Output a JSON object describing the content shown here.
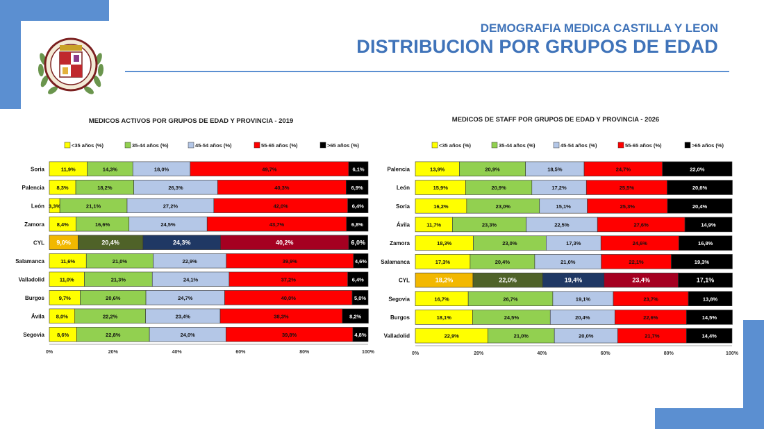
{
  "header": {
    "supertitle": "DEMOGRAFIA MEDICA CASTILLA Y LEON",
    "title": "DISTRIBUCION POR GRUPOS DE EDAD"
  },
  "colors": {
    "accent": "#5b8fd1",
    "header_text": "#3f73b9"
  },
  "logo": {
    "description_icon": "crest-emblem-icon",
    "lettering": "ILUSTRE COLEGIO OFICIAL DE MEDICOS DE CASTILLA Y LEON"
  },
  "chart_data": [
    {
      "type": "bar",
      "orientation": "horizontal",
      "stacked": true,
      "title": "MEDICOS ACTIVOS POR GRUPOS DE EDAD Y PROVINCIA - 2019",
      "categories": [
        "Soria",
        "Palencia",
        "León",
        "Zamora",
        "CYL",
        "Salamanca",
        "Valladolid",
        "Burgos",
        "Ávila",
        "Segovia"
      ],
      "highlight_category": "CYL",
      "series": [
        {
          "name": "<35 años (%)",
          "color": "#ffff00",
          "highlight_color": "#f2b800",
          "values": [
            11.9,
            8.3,
            3.3,
            8.4,
            9.0,
            11.6,
            11.0,
            9.7,
            8.0,
            8.6
          ],
          "labels": [
            "11,9%",
            "8,3%",
            "3,3%",
            "8,4%",
            "9,0%",
            "11,6%",
            "11,0%",
            "9,7%",
            "8,0%",
            "8,6%"
          ]
        },
        {
          "name": "35-44 años (%)",
          "color": "#92d050",
          "highlight_color": "#4f6228",
          "values": [
            14.3,
            18.2,
            21.1,
            16.6,
            20.4,
            21.0,
            21.3,
            20.6,
            22.2,
            22.8
          ],
          "labels": [
            "14,3%",
            "18,2%",
            "21,1%",
            "16,6%",
            "20,4%",
            "21,0%",
            "21,3%",
            "20,6%",
            "22,2%",
            "22,8%"
          ]
        },
        {
          "name": "45-54 años (%)",
          "color": "#b4c7e7",
          "highlight_color": "#1f3864",
          "values": [
            18.0,
            26.3,
            27.2,
            24.5,
            24.3,
            22.9,
            24.1,
            24.7,
            23.4,
            24.0
          ],
          "labels": [
            "18,0%",
            "26,3%",
            "27,2%",
            "24,5%",
            "24,3%",
            "22,9%",
            "24,1%",
            "24,7%",
            "23,4%",
            "24,0%"
          ]
        },
        {
          "name": "55-65 años (%)",
          "color": "#ff0000",
          "highlight_color": "#a50021",
          "values": [
            49.7,
            40.3,
            42.0,
            43.7,
            40.2,
            39.9,
            37.2,
            40.0,
            38.3,
            39.8
          ],
          "labels": [
            "49,7%",
            "40,3%",
            "42,0%",
            "43,7%",
            "40,2%",
            "39,9%",
            "37,2%",
            "40,0%",
            "38,3%",
            "39,8%"
          ]
        },
        {
          "name": ">65 años (%)",
          "color": "#000000",
          "highlight_color": "#000000",
          "values": [
            6.1,
            6.9,
            6.4,
            6.8,
            6.0,
            4.6,
            6.4,
            5.0,
            8.2,
            4.8
          ],
          "labels": [
            "6,1%",
            "6,9%",
            "6,4%",
            "6,8%",
            "6,0%",
            "4,6%",
            "6,4%",
            "5,0%",
            "8,2%",
            "4,8%"
          ]
        }
      ],
      "xlim": [
        0,
        100
      ],
      "xticks": [
        "0%",
        "20%",
        "40%",
        "60%",
        "80%",
        "100%"
      ],
      "legend_position": "top"
    },
    {
      "type": "bar",
      "orientation": "horizontal",
      "stacked": true,
      "title": "MEDICOS DE STAFF POR GRUPOS DE EDAD Y PROVINCIA - 2026",
      "categories": [
        "Palencia",
        "León",
        "Soria",
        "Ávila",
        "Zamora",
        "Salamanca",
        "CYL",
        "Segovia",
        "Burgos",
        "Valladolid"
      ],
      "highlight_category": "CYL",
      "series": [
        {
          "name": "<35 años (%)",
          "color": "#ffff00",
          "highlight_color": "#f2b800",
          "values": [
            13.9,
            15.9,
            16.2,
            11.7,
            18.3,
            17.3,
            18.2,
            16.7,
            18.1,
            22.9
          ],
          "labels": [
            "13,9%",
            "15,9%",
            "16,2%",
            "11,7%",
            "18,3%",
            "17,3%",
            "18,2%",
            "16,7%",
            "18,1%",
            "22,9%"
          ]
        },
        {
          "name": "35-44 años (%)",
          "color": "#92d050",
          "highlight_color": "#4f6228",
          "values": [
            20.9,
            20.9,
            23.0,
            23.3,
            23.0,
            20.4,
            22.0,
            26.7,
            24.5,
            21.0
          ],
          "labels": [
            "20,9%",
            "20,9%",
            "23,0%",
            "23,3%",
            "23,0%",
            "20,4%",
            "22,0%",
            "26,7%",
            "24,5%",
            "21,0%"
          ]
        },
        {
          "name": "45-54 años (%)",
          "color": "#b4c7e7",
          "highlight_color": "#1f3864",
          "values": [
            18.5,
            17.2,
            15.1,
            22.5,
            17.3,
            21.0,
            19.4,
            19.1,
            20.4,
            20.0
          ],
          "labels": [
            "18,5%",
            "17,2%",
            "15,1%",
            "22,5%",
            "17,3%",
            "21,0%",
            "19,4%",
            "19,1%",
            "20,4%",
            "20,0%"
          ]
        },
        {
          "name": "55-65 años (%)",
          "color": "#ff0000",
          "highlight_color": "#a50021",
          "values": [
            24.7,
            25.5,
            25.3,
            27.6,
            24.6,
            22.1,
            23.4,
            23.7,
            22.6,
            21.7
          ],
          "labels": [
            "24,7%",
            "25,5%",
            "25,3%",
            "27,6%",
            "24,6%",
            "22,1%",
            "23,4%",
            "23,7%",
            "22,6%",
            "21,7%"
          ]
        },
        {
          "name": ">65 años (%)",
          "color": "#000000",
          "highlight_color": "#000000",
          "values": [
            22.0,
            20.6,
            20.4,
            14.9,
            16.8,
            19.3,
            17.1,
            13.8,
            14.5,
            14.4
          ],
          "labels": [
            "22,0%",
            "20,6%",
            "20,4%",
            "14,9%",
            "16,8%",
            "19,3%",
            "17,1%",
            "13,8%",
            "14,5%",
            "14,4%"
          ]
        }
      ],
      "xlim": [
        0,
        100
      ],
      "xticks": [
        "0%",
        "20%",
        "40%",
        "60%",
        "80%",
        "100%"
      ],
      "legend_position": "top"
    }
  ]
}
